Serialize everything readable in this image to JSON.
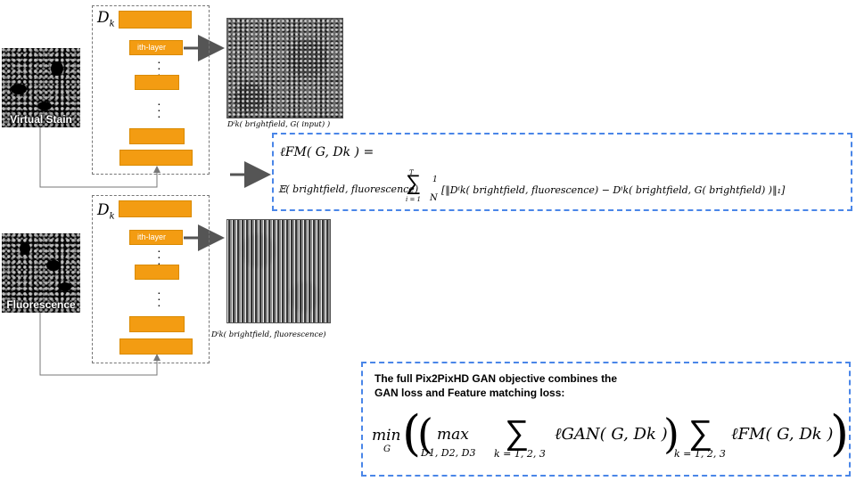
{
  "inputs": {
    "virtual_stain_label": "Virtual Stain",
    "fluorescence_label": "Fluorescence"
  },
  "discriminator": {
    "name": "D",
    "subscript": "k",
    "layer_label": "ith-layer"
  },
  "feature_captions": {
    "top": "Dⁱk( brightfield, G( input) )",
    "bottom": "Dⁱk( brightfield, fluorescence)"
  },
  "fm_loss": {
    "lhs": "ℓFM( G, Dk ) =",
    "expectation": "𝔼( brightfield, fluorescence)",
    "sum_top": "T",
    "sum_bottom": "i = 1",
    "frac_num": "1",
    "frac_den": "N",
    "body": "[‖Dⁱk( brightfield, fluorescence) − Dⁱk( brightfield, G( brightfield) )‖₁]"
  },
  "objective": {
    "text_line1": "The full Pix2PixHD GAN objective combines the",
    "text_line2": "GAN loss and Feature matching loss:",
    "min": "min",
    "min_sub": "G",
    "max": "max",
    "max_sub": "D1, D2, D3",
    "sum_sub": "k = 1, 2, 3",
    "gan_term": "ℓGAN( G, Dk )",
    "fm_term": "ℓFM( G, Dk )"
  },
  "colors": {
    "layer_orange": "#f39c12",
    "dash_blue": "#4a86e8",
    "arrow_gray": "#555555"
  }
}
